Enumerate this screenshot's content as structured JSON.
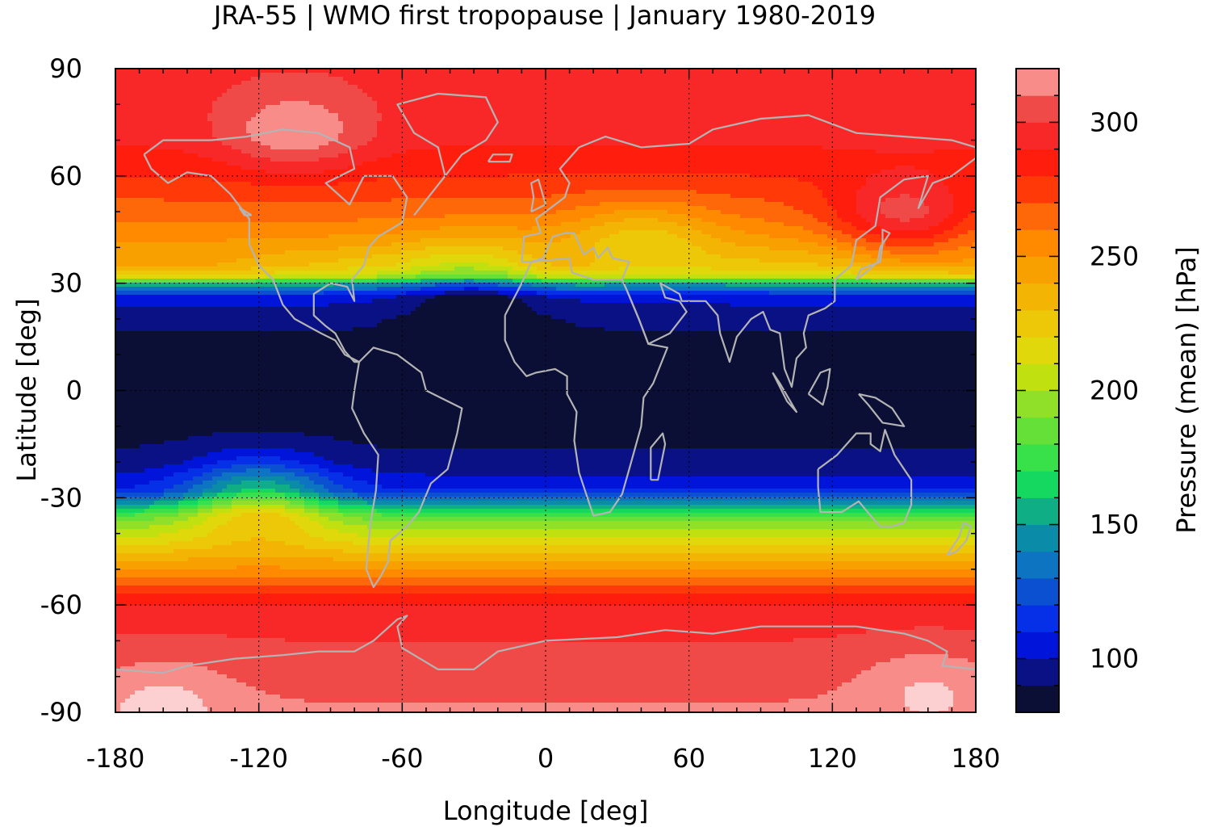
{
  "chart_data": {
    "type": "heatmap",
    "title": "JRA-55 | WMO first tropopause | January 1980-2019",
    "xlabel": "Longitude [deg]",
    "ylabel": "Latitude [deg]",
    "xlim": [
      -180,
      180
    ],
    "ylim": [
      -90,
      90
    ],
    "x_ticks": [
      -180,
      -120,
      -60,
      0,
      60,
      120,
      180
    ],
    "y_ticks": [
      -90,
      -60,
      -30,
      0,
      30,
      60,
      90
    ],
    "grid": true,
    "colorbar": {
      "label": "Pressure (mean) [hPa]",
      "range": [
        80,
        320
      ],
      "ticks": [
        100,
        150,
        200,
        250,
        300
      ],
      "levels": [
        80,
        90,
        100,
        110,
        120,
        130,
        140,
        150,
        160,
        170,
        180,
        190,
        200,
        210,
        220,
        230,
        240,
        250,
        260,
        270,
        280,
        290,
        300,
        310,
        320
      ],
      "colors": [
        "#0b0e35",
        "#0a1185",
        "#0015d9",
        "#0530e8",
        "#0a50d0",
        "#0c74c0",
        "#0a8ca8",
        "#10ae84",
        "#15d860",
        "#38e04a",
        "#64e038",
        "#90e02a",
        "#c0e010",
        "#e0d80a",
        "#ecc808",
        "#f4b404",
        "#f8a000",
        "#ff8a00",
        "#ff6808",
        "#ff3a08",
        "#ff1e0e",
        "#f82828",
        "#f04a48",
        "#f88c88",
        "#fcd0d0"
      ]
    },
    "zonal_mean_pressure": {
      "latitudes": [
        -90,
        -80,
        -70,
        -62,
        -58,
        -55,
        -52,
        -48,
        -45,
        -42,
        -38,
        -35,
        -32,
        -28,
        -20,
        -10,
        0,
        10,
        20,
        26,
        28,
        30,
        32,
        35,
        40,
        45,
        50,
        60,
        70,
        80,
        90
      ],
      "values": [
        312,
        305,
        300,
        296,
        285,
        272,
        258,
        242,
        228,
        214,
        196,
        180,
        150,
        110,
        92,
        86,
        85,
        86,
        92,
        105,
        130,
        160,
        215,
        235,
        245,
        255,
        265,
        280,
        292,
        296,
        298
      ]
    },
    "regional_anomalies": [
      {
        "lon": -105,
        "lat": 72,
        "delta": 26
      },
      {
        "lon": 150,
        "lat": 48,
        "delta": 40
      },
      {
        "lon": -120,
        "lat": -30,
        "delta": 55
      },
      {
        "lon": -160,
        "lat": -85,
        "delta": 14
      },
      {
        "lon": 160,
        "lat": -82,
        "delta": 14
      },
      {
        "lon": 40,
        "lat": 42,
        "delta": -28
      },
      {
        "lon": -30,
        "lat": 32,
        "delta": -30
      }
    ],
    "coastlines_color": "#b4b4b4"
  }
}
